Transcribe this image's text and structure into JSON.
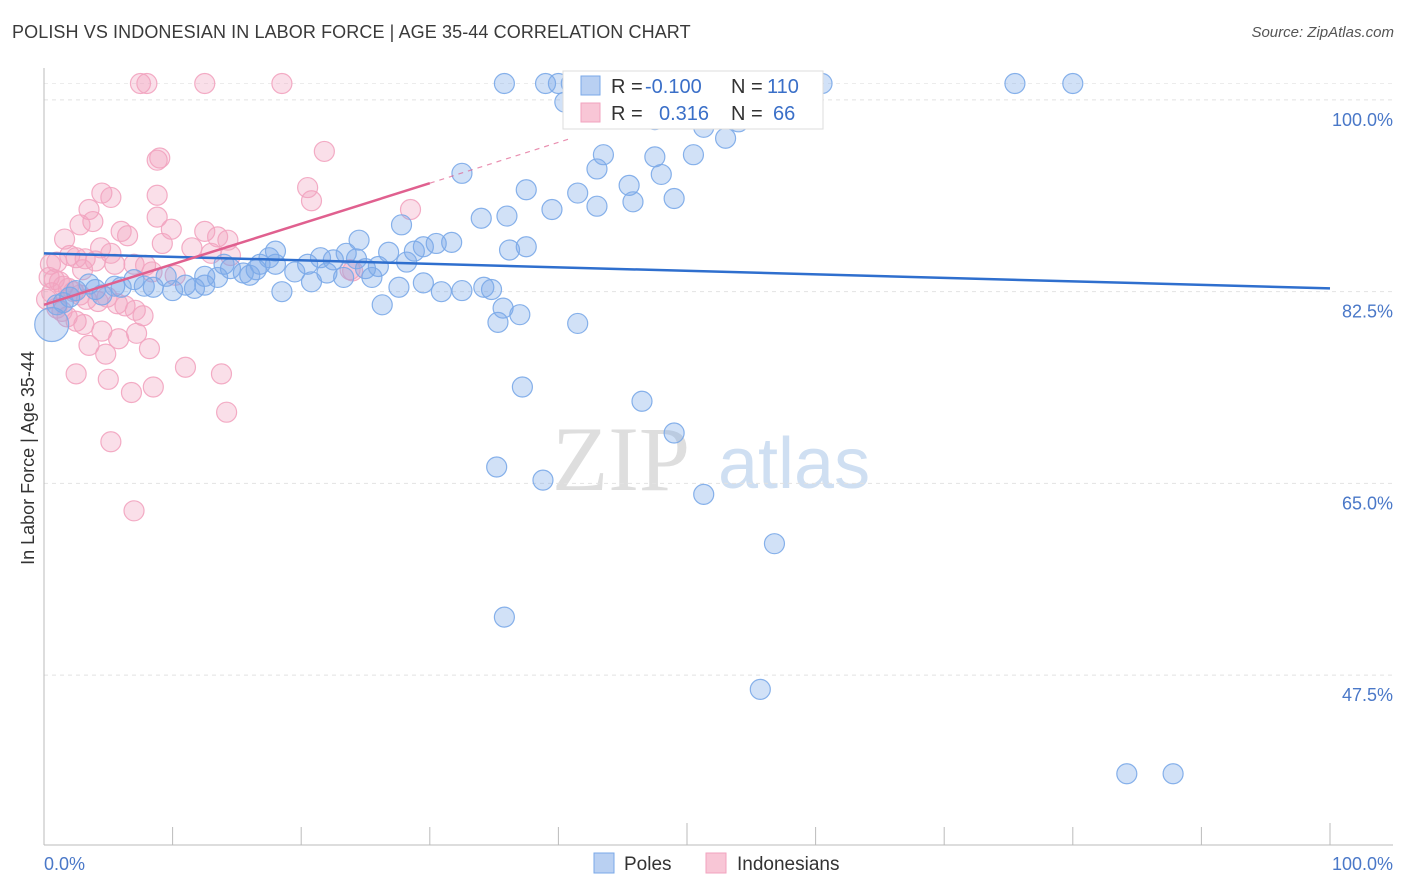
{
  "title": "POLISH VS INDONESIAN IN LABOR FORCE | AGE 35-44 CORRELATION CHART",
  "source": "Source: ZipAtlas.com",
  "watermark": {
    "zip": "ZIP",
    "atlas": "atlas"
  },
  "chart_data": {
    "type": "scatter",
    "ylabel": "In Labor Force | Age 35-44",
    "xlim": [
      0,
      100
    ],
    "ylim": [
      32,
      102
    ],
    "y_ticks": [
      {
        "value": 100,
        "label": "100.0%"
      },
      {
        "value": 82.5,
        "label": "82.5%"
      },
      {
        "value": 65,
        "label": "65.0%"
      },
      {
        "value": 47.5,
        "label": "47.5%"
      }
    ],
    "x_tick_labels": {
      "left": "0.0%",
      "right": "100.0%"
    },
    "colors": {
      "poles": "#7aa8e8",
      "poles_line": "#2f6fce",
      "indonesians": "#f2a3bf",
      "indonesians_line": "#e0608f"
    },
    "legend": {
      "poles": {
        "r_label": "R =",
        "r_value": "-0.100",
        "n_label": "N =",
        "n_value": "110"
      },
      "indonesians": {
        "r_label": "R =",
        "r_value": "0.316",
        "n_label": "N =",
        "n_value": "66"
      }
    },
    "series": [
      {
        "name": "Poles",
        "trend": {
          "x0": 0,
          "y0": 86.0,
          "x1": 100,
          "y1": 82.8
        },
        "points": [
          [
            35.8,
            101.5
          ],
          [
            39,
            101.5
          ],
          [
            40,
            101.5
          ],
          [
            41,
            101.5
          ],
          [
            42.5,
            101.5
          ],
          [
            44,
            101.5
          ],
          [
            46,
            101.5
          ],
          [
            53,
            101.5
          ],
          [
            54.5,
            101.5
          ],
          [
            56.5,
            101.5
          ],
          [
            59,
            101.5
          ],
          [
            60.5,
            101.5
          ],
          [
            75.5,
            101.5
          ],
          [
            80,
            101.5
          ],
          [
            40.5,
            99.8
          ],
          [
            43,
            99.5
          ],
          [
            47.5,
            98.2
          ],
          [
            51.3,
            97.5
          ],
          [
            43.5,
            95.0
          ],
          [
            47.5,
            94.8
          ],
          [
            43,
            93.7
          ],
          [
            32.5,
            93.3
          ],
          [
            48,
            93.2
          ],
          [
            45.5,
            92.2
          ],
          [
            37.5,
            91.8
          ],
          [
            41.5,
            91.5
          ],
          [
            45.8,
            90.7
          ],
          [
            43,
            90.3
          ],
          [
            39.5,
            90.0
          ],
          [
            36,
            89.4
          ],
          [
            34,
            89.2
          ],
          [
            27.8,
            88.6
          ],
          [
            24.5,
            87.2
          ],
          [
            37.5,
            86.6
          ],
          [
            36.2,
            86.3
          ],
          [
            31.7,
            87.0
          ],
          [
            30.5,
            86.9
          ],
          [
            29.5,
            86.6
          ],
          [
            28.8,
            86.2
          ],
          [
            28.2,
            85.2
          ],
          [
            26.8,
            86.1
          ],
          [
            26,
            84.8
          ],
          [
            25,
            84.6
          ],
          [
            24.3,
            85.5
          ],
          [
            23.5,
            86.0
          ],
          [
            22.5,
            85.4
          ],
          [
            21.5,
            85.6
          ],
          [
            20.5,
            85.0
          ],
          [
            19.5,
            84.3
          ],
          [
            18,
            86.2
          ],
          [
            17.5,
            85.6
          ],
          [
            16.8,
            85.0
          ],
          [
            16,
            84.0
          ],
          [
            15.5,
            84.2
          ],
          [
            14.5,
            84.6
          ],
          [
            13.5,
            83.8
          ],
          [
            12.5,
            83.9
          ],
          [
            11.7,
            82.8
          ],
          [
            11,
            83.1
          ],
          [
            10,
            82.6
          ],
          [
            9.5,
            83.9
          ],
          [
            8.5,
            82.9
          ],
          [
            7.8,
            83.0
          ],
          [
            7,
            83.6
          ],
          [
            6,
            82.9
          ],
          [
            5.5,
            83.0
          ],
          [
            4.5,
            82.2
          ],
          [
            4,
            82.7
          ],
          [
            3.5,
            83.2
          ],
          [
            2.5,
            82.6
          ],
          [
            2.0,
            82.0
          ],
          [
            1.5,
            81.5
          ],
          [
            1.0,
            81.3
          ],
          [
            0.6,
            79.5
          ],
          [
            12.5,
            83.1
          ],
          [
            14.0,
            85.0
          ],
          [
            16.5,
            84.5
          ],
          [
            18.5,
            82.5
          ],
          [
            20.8,
            83.4
          ],
          [
            22,
            84.2
          ],
          [
            23.3,
            83.8
          ],
          [
            25.5,
            83.8
          ],
          [
            26.3,
            81.3
          ],
          [
            27.6,
            82.9
          ],
          [
            29.5,
            83.3
          ],
          [
            30.9,
            82.5
          ],
          [
            34.2,
            82.9
          ],
          [
            32.5,
            82.6
          ],
          [
            34.8,
            82.7
          ],
          [
            35.7,
            81.0
          ],
          [
            37,
            80.4
          ],
          [
            35.3,
            79.7
          ],
          [
            41.5,
            79.6
          ],
          [
            49,
            91.0
          ],
          [
            50.5,
            95.0
          ],
          [
            54,
            98.0
          ],
          [
            53,
            96.5
          ],
          [
            37.2,
            73.8
          ],
          [
            46.5,
            72.5
          ],
          [
            49,
            69.6
          ],
          [
            35.2,
            66.5
          ],
          [
            38.8,
            65.3
          ],
          [
            51.3,
            64.0
          ],
          [
            56.8,
            59.5
          ],
          [
            35.8,
            52.8
          ],
          [
            55.7,
            46.2
          ],
          [
            84.2,
            38.5
          ],
          [
            87.8,
            38.5
          ],
          [
            18,
            85.0
          ]
        ],
        "sizes": {
          "large_index": 73
        }
      },
      {
        "name": "Indonesians",
        "trend": {
          "x0": 0,
          "y0": 81.3,
          "x1": 30,
          "y1": 92.4,
          "dashed_to": {
            "x": 41,
            "y": 96.5
          }
        },
        "points": [
          [
            7.5,
            101.5
          ],
          [
            8,
            101.5
          ],
          [
            12.5,
            101.5
          ],
          [
            18.5,
            101.5
          ],
          [
            21.8,
            95.3
          ],
          [
            8.8,
            94.5
          ],
          [
            9.0,
            94.7
          ],
          [
            20.5,
            92.0
          ],
          [
            4.5,
            91.5
          ],
          [
            5.2,
            91.1
          ],
          [
            8.8,
            91.3
          ],
          [
            20.8,
            90.8
          ],
          [
            3.5,
            90.0
          ],
          [
            8.8,
            89.3
          ],
          [
            2.8,
            88.6
          ],
          [
            9.9,
            88.2
          ],
          [
            12.5,
            88.0
          ],
          [
            13.5,
            87.5
          ],
          [
            14.3,
            87.2
          ],
          [
            6.5,
            87.6
          ],
          [
            1.6,
            87.3
          ],
          [
            9.2,
            86.9
          ],
          [
            11.5,
            86.5
          ],
          [
            2.0,
            85.8
          ],
          [
            2.5,
            85.6
          ],
          [
            3.2,
            85.5
          ],
          [
            4.0,
            85.3
          ],
          [
            5.5,
            85.0
          ],
          [
            7.0,
            85.0
          ],
          [
            7.9,
            84.9
          ],
          [
            8.4,
            84.3
          ],
          [
            10.2,
            84.0
          ],
          [
            0.4,
            83.8
          ],
          [
            0.8,
            83.6
          ],
          [
            1.2,
            83.4
          ],
          [
            1.5,
            83.0
          ],
          [
            1.9,
            82.8
          ],
          [
            2.3,
            82.5
          ],
          [
            2.8,
            82.2
          ],
          [
            3.3,
            81.8
          ],
          [
            4.2,
            81.6
          ],
          [
            4.9,
            82.0
          ],
          [
            5.7,
            81.4
          ],
          [
            6.3,
            81.2
          ],
          [
            7.1,
            80.8
          ],
          [
            7.7,
            80.3
          ],
          [
            0.2,
            81.8
          ],
          [
            0.6,
            82.4
          ],
          [
            1.0,
            81.0
          ],
          [
            1.4,
            80.7
          ],
          [
            1.8,
            80.2
          ],
          [
            2.5,
            79.8
          ],
          [
            3.1,
            79.5
          ],
          [
            4.5,
            78.9
          ],
          [
            5.8,
            78.2
          ],
          [
            7.2,
            78.7
          ],
          [
            8.2,
            77.3
          ],
          [
            3.5,
            77.6
          ],
          [
            4.8,
            76.8
          ],
          [
            2.5,
            75.0
          ],
          [
            5.0,
            74.5
          ],
          [
            11.0,
            75.6
          ],
          [
            13.8,
            75.0
          ],
          [
            6.8,
            73.3
          ],
          [
            8.5,
            73.8
          ],
          [
            14.2,
            71.5
          ],
          [
            5.2,
            68.8
          ],
          [
            7.0,
            62.5
          ],
          [
            14.5,
            85.8
          ],
          [
            24,
            84.4
          ],
          [
            23.8,
            84.5
          ],
          [
            28.5,
            90.0
          ],
          [
            3.8,
            88.9
          ],
          [
            6.0,
            88.0
          ],
          [
            4.4,
            86.5
          ],
          [
            5.2,
            86.0
          ],
          [
            1.0,
            85.2
          ],
          [
            13.0,
            86.0
          ],
          [
            3.0,
            84.5
          ],
          [
            0.5,
            85.0
          ]
        ]
      }
    ],
    "bottom_legend": [
      "Poles",
      "Indonesians"
    ]
  }
}
